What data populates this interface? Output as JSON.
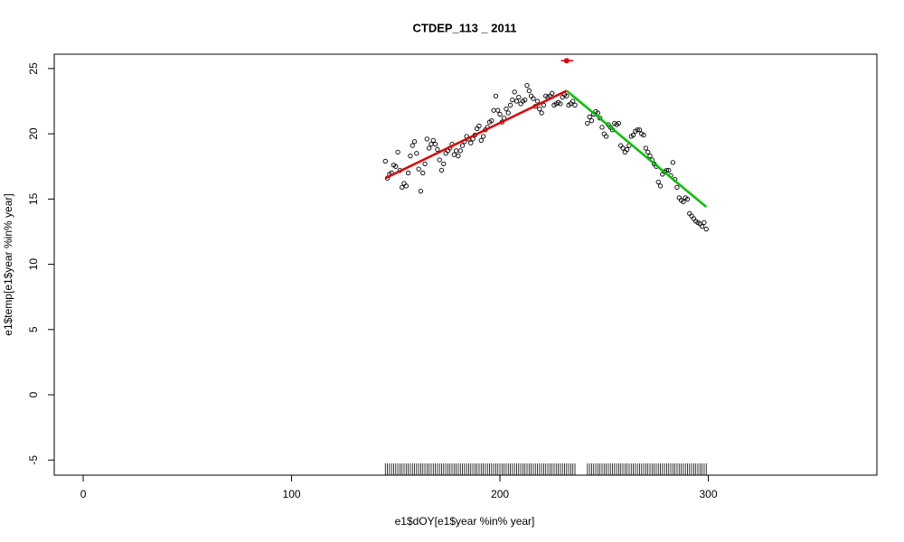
{
  "chart_data": {
    "type": "scatter",
    "title": "CTDEP_113 _ 2011",
    "x_label": "e1$dOY[e1$year %in% year]",
    "y_label": "e1$temp[e1$year %in% year]",
    "xlim": [
      -13.9,
      380.9
    ],
    "ylim": [
      -6.16,
      26.1
    ],
    "xticks": [
      0,
      100,
      200,
      300
    ],
    "yticks": [
      -5,
      0,
      5,
      10,
      15,
      20,
      25
    ],
    "color": "#000000",
    "rug": true,
    "x": [
      145,
      146,
      147,
      148,
      149,
      150,
      151,
      152,
      153,
      154,
      155,
      156,
      157,
      158,
      159,
      160,
      161,
      162,
      163,
      164,
      165,
      166,
      167,
      168,
      169,
      170,
      171,
      172,
      173,
      174,
      175,
      176,
      177,
      178,
      179,
      180,
      181,
      182,
      183,
      184,
      185,
      186,
      187,
      188,
      189,
      190,
      191,
      192,
      193,
      194,
      195,
      196,
      197,
      198,
      199,
      200,
      201,
      202,
      203,
      204,
      205,
      206,
      207,
      208,
      209,
      210,
      211,
      212,
      213,
      214,
      215,
      216,
      217,
      218,
      219,
      220,
      221,
      222,
      223,
      224,
      225,
      226,
      227,
      228,
      229,
      230,
      231,
      232,
      233,
      234,
      235,
      236,
      242,
      243,
      244,
      245,
      246,
      247,
      248,
      249,
      250,
      251,
      252,
      253,
      254,
      255,
      256,
      257,
      258,
      259,
      260,
      261,
      262,
      263,
      264,
      265,
      266,
      267,
      268,
      269,
      270,
      271,
      272,
      273,
      274,
      275,
      276,
      277,
      278,
      279,
      280,
      281,
      282,
      283,
      284,
      285,
      286,
      287,
      288,
      289,
      290,
      291,
      292,
      293,
      294,
      295,
      296,
      297,
      298,
      299
    ],
    "values": [
      17.9,
      16.6,
      16.9,
      17.0,
      17.6,
      17.5,
      18.6,
      17.2,
      15.9,
      16.2,
      16.0,
      17.0,
      18.3,
      19.1,
      19.4,
      18.5,
      17.3,
      15.6,
      17.0,
      17.7,
      19.6,
      18.9,
      19.2,
      19.5,
      19.2,
      18.8,
      18.0,
      17.2,
      17.7,
      18.5,
      18.7,
      18.9,
      19.2,
      18.4,
      18.7,
      18.3,
      18.7,
      19.1,
      19.4,
      19.8,
      19.6,
      19.3,
      19.6,
      19.9,
      20.4,
      20.6,
      19.5,
      19.8,
      20.3,
      20.5,
      20.9,
      21.0,
      21.8,
      22.9,
      21.8,
      21.5,
      20.9,
      21.2,
      21.9,
      21.6,
      22.2,
      22.6,
      23.2,
      22.5,
      22.8,
      22.3,
      22.5,
      22.6,
      23.7,
      23.3,
      22.9,
      22.7,
      22.1,
      22.5,
      21.9,
      21.6,
      22.2,
      22.9,
      22.8,
      22.9,
      23.1,
      22.2,
      22.3,
      22.4,
      22.3,
      22.8,
      23.0,
      22.9,
      22.2,
      22.3,
      22.5,
      22.2,
      20.8,
      21.3,
      21.0,
      21.5,
      21.7,
      21.6,
      21.2,
      20.5,
      20.0,
      19.8,
      20.7,
      20.5,
      20.3,
      20.8,
      20.7,
      20.8,
      19.1,
      18.9,
      18.6,
      18.8,
      19.1,
      19.8,
      19.9,
      20.2,
      20.3,
      20.3,
      20.0,
      19.9,
      18.9,
      18.6,
      18.3,
      18.0,
      17.7,
      17.5,
      16.3,
      16.0,
      16.9,
      17.1,
      17.2,
      17.2,
      16.8,
      17.8,
      16.5,
      15.9,
      15.1,
      14.9,
      14.8,
      15.1,
      15.0,
      13.9,
      13.7,
      13.5,
      13.3,
      13.2,
      13.1,
      12.9,
      13.2,
      12.7
    ],
    "fits": [
      {
        "color": "#dd0000",
        "x": [
          145,
          232
        ],
        "values": [
          16.6,
          23.3
        ]
      },
      {
        "color": "#00c000",
        "x": [
          232,
          299
        ],
        "values": [
          23.3,
          14.4
        ]
      }
    ],
    "breakpoint": {
      "color": "#dd0000",
      "x": 232,
      "value": 25.6,
      "x_interval": [
        229.3,
        235.2
      ]
    }
  }
}
